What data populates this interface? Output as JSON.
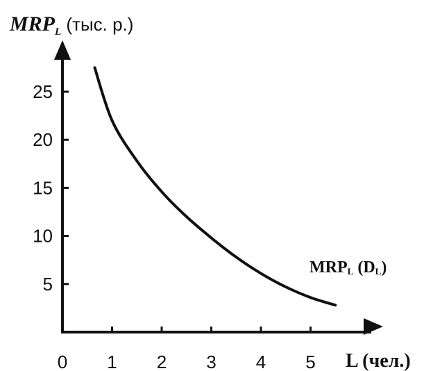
{
  "chart_data": {
    "type": "line",
    "title": "",
    "ylabel": {
      "main": "MRP",
      "sub": "L",
      "unit": " (тыс. р.)"
    },
    "xlabel": "L (чел.)",
    "x_ticks": [
      "0",
      "1",
      "2",
      "3",
      "4",
      "5"
    ],
    "y_ticks": [
      "5",
      "10",
      "15",
      "20",
      "25"
    ],
    "xlim": [
      0,
      6
    ],
    "ylim": [
      0,
      28
    ],
    "grid": false,
    "series": [
      {
        "name": {
          "main": "MRP",
          "sub": "L",
          "mid": " (D",
          "sub2": "L",
          "end": ")"
        },
        "x": [
          0.65,
          1,
          1.5,
          2,
          2.5,
          3,
          3.5,
          4,
          4.5,
          5,
          5.5
        ],
        "y": [
          27.5,
          22,
          17.8,
          14.6,
          12,
          9.8,
          7.8,
          6.1,
          4.7,
          3.6,
          2.8
        ],
        "color": "#111111"
      }
    ]
  }
}
